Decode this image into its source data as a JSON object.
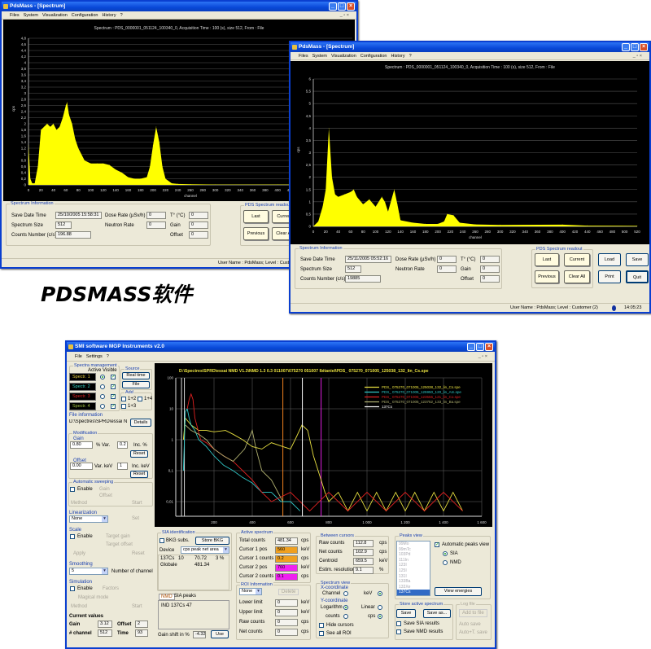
{
  "caption": "PDSMASS软件",
  "pdsmass_menu": [
    "Files",
    "System",
    "Visualization",
    "Configuration",
    "History",
    "?"
  ],
  "window1": {
    "title": "PdsMass - [Spectrum]",
    "chart_title": "Spectrum : PDS_0000001_051124_100340_0, Acquisition Time : 100 (s), size 512, From : File",
    "info_group": "Spectrum Information",
    "labels": {
      "save_date": "Save Date Time",
      "size": "Spectrum Size",
      "counts": "Counts Number (c/s)",
      "dose": "Dose Rate (µSv/h)",
      "neutron": "Neutron Rate",
      "temp": "T° (°C)",
      "gain": "Gain",
      "offset": "Offset"
    },
    "values": {
      "save_date": "25/10/2005 15:58:31",
      "size": "512",
      "counts": "196.88",
      "dose": "0",
      "neutron": "0",
      "temp": "0",
      "gain": "0",
      "offset": "0"
    },
    "readout_group": "PDS Spectrum readout",
    "buttons": {
      "last": "Last",
      "current": "Current",
      "previous": "Previous",
      "clear_all": "Clear All"
    },
    "status": "User Name : PdsMass;  Level : Customer (2)"
  },
  "window2": {
    "title": "PdsMass - [Spectrum]",
    "chart_title": "Spectrum : PDS_0000001_051124_100340_0, Acquisition Time : 100 (s), size 512, From : File",
    "info_group": "Spectrum Information",
    "labels": {
      "save_date": "Save Date Time",
      "size": "Spectrum Size",
      "counts": "Counts Number (c/s)",
      "dose": "Dose Rate (µSv/h)",
      "neutron": "Neutron Rate",
      "temp": "T° (°C)",
      "gain": "Gain",
      "offset": "Offset"
    },
    "values": {
      "save_date": "25/11/2005 05:52:16",
      "size": "512",
      "counts": "19885",
      "dose": "0",
      "neutron": "0",
      "temp": "0",
      "gain": "0",
      "offset": "0"
    },
    "readout_group": "PDS Spectrum readout",
    "buttons": {
      "last": "Last",
      "current": "Current",
      "previous": "Previous",
      "clear_all": "Clear All",
      "load": "Load",
      "save": "Save",
      "print": "Print",
      "quit": "Quit"
    },
    "status": "User Name : PdsMass;  Level : Customer (2)",
    "time": "14:05:23"
  },
  "window3": {
    "title": "SMI software MGP Instruments v2.0",
    "menu": [
      "File",
      "Settings",
      "?"
    ],
    "spectra": {
      "group": "Spectra management",
      "header": "Active Visible",
      "items": [
        {
          "label": "Spectr. 1",
          "color": "#e8d040",
          "active": true,
          "visible": true
        },
        {
          "label": "Spectr. 2",
          "color": "#30d0c0",
          "active": false,
          "visible": true
        },
        {
          "label": "Spectr. 3",
          "color": "#e02020",
          "active": false,
          "visible": true
        },
        {
          "label": "Spectr. 4",
          "color": "#a0c040",
          "active": false,
          "visible": true
        }
      ]
    },
    "source": {
      "group": "Source",
      "real_time": "Real time",
      "file": "File"
    },
    "add": {
      "group": "Add",
      "c12": "1+2",
      "c14": "1+4",
      "c13": "1+3"
    },
    "file_info": {
      "group": "File information",
      "path": "D:\\Spectres\\SPRD\\essai N",
      "details": "Details"
    },
    "modification": {
      "group": "Modification",
      "gain_label": "Gain",
      "gain": "0.80",
      "gain_var": "% Var.",
      "gain_inc": "0.2",
      "gain_inc_unit": "Inc. %",
      "reset": "Reset",
      "offset_label": "Offset",
      "offset": "0.00",
      "offset_var": "Var. keV",
      "offset_inc": "1",
      "offset_inc_unit": "Inc. keV"
    },
    "sweeping": {
      "group": "Automatic sweeping",
      "enable": "Enable",
      "gain": "Gain",
      "offset": "Offset",
      "method": "Method",
      "start": "Start"
    },
    "linearization": {
      "group": "Linearization",
      "value": "None",
      "set": "Set"
    },
    "scale": {
      "group": "Scale",
      "enable": "Enable",
      "target_gain": "Target gain",
      "target_offset": "Target offset",
      "apply": "Apply",
      "reset": "Reset"
    },
    "smoothing": {
      "group": "Smoothing",
      "value": "5",
      "label": "Number of channel"
    },
    "simulation": {
      "group": "Simulation",
      "enable": "Enable",
      "factors": "Factors",
      "magical": "Magical mode",
      "method": "Method",
      "start": "Start"
    },
    "current": {
      "title": "Current values",
      "gain_label": "Gain",
      "gain": "3.12",
      "offset_label": "Offset",
      "offset": "2",
      "channel_label": "# channel",
      "channel": "512",
      "time_label": "Time",
      "time": "93"
    },
    "chart_title": "D:\\Spectres\\SPRD\\essai NMD V1.3\\NMD 1.3 0.3 011007\\075270 051007 lbitaniel\\PDS_ 075270_071005_125038_132_lin_Cs.spe",
    "sia": {
      "group": "SIA identification",
      "bkg": "BKG subs.",
      "store_bkg": "Store BKG",
      "device_label": "Device",
      "device": "cps peak net area",
      "rows": [
        [
          "137Cs",
          "10",
          "70.72",
          "3 %"
        ],
        [
          "Globale",
          "",
          "481.34",
          ""
        ]
      ]
    },
    "nmd": {
      "tabs": [
        "NMD",
        "SIA peaks"
      ],
      "text": "IND 137Cs 47",
      "gain_shift_label": "Gain shift in %",
      "gain_shift": "-4.32",
      "use": "Use"
    },
    "active": {
      "group": "Active spectrum",
      "rows": [
        {
          "label": "Total counts",
          "value": "481.34",
          "unit": "cps",
          "color": "#f4f3ee"
        },
        {
          "label": "Cursor 1 pos",
          "value": "560",
          "unit": "keV",
          "color": "#f0a020"
        },
        {
          "label": "Cursor 1 counts",
          "value": "0.2",
          "unit": "cps",
          "color": "#f0a020"
        },
        {
          "label": "Cursor 2 pos",
          "value": "760",
          "unit": "keV",
          "color": "#f020f0"
        },
        {
          "label": "Cursor 2 counts",
          "value": "0.1",
          "unit": "cps",
          "color": "#f020f0"
        }
      ]
    },
    "roi": {
      "group": "ROI Information",
      "select": "None",
      "delete": "Delete",
      "rows": [
        {
          "label": "Lower limit",
          "value": "0",
          "unit": "keV"
        },
        {
          "label": "Upper limit",
          "value": "0",
          "unit": "keV"
        },
        {
          "label": "Raw counts",
          "value": "0",
          "unit": "cps"
        },
        {
          "label": "Net counts",
          "value": "0",
          "unit": "cps"
        }
      ]
    },
    "between": {
      "group": "Between cursors",
      "rows": [
        {
          "label": "Raw counts",
          "value": "112.8",
          "unit": "cps"
        },
        {
          "label": "Net counts",
          "value": "102.9",
          "unit": "cps"
        },
        {
          "label": "Centroid",
          "value": "659.5",
          "unit": "keV"
        },
        {
          "label": "Estim. resolution",
          "value": "9.1",
          "unit": "%"
        }
      ]
    },
    "view": {
      "group": "Spectrum view",
      "x_title": "X-coordinate",
      "channel": "Channel",
      "kev": "keV",
      "y_title": "Y-coordinate",
      "log": "Logarithm",
      "linear": "Linear",
      "counts": "counts",
      "cps": "cps",
      "hide": "Hide cursors",
      "roi": "See all ROI"
    },
    "peaks": {
      "group": "Peaks view",
      "items": [
        "99Mo",
        "99mTc",
        "103Pd",
        "111In",
        "123I",
        "125I",
        "131I",
        "133Ba",
        "133Xe",
        "137Cs"
      ],
      "selected": "137Cs",
      "auto": "Automatic peaks view",
      "sia": "SIA",
      "nmd": "NMD",
      "view_energies": "View energies"
    },
    "store": {
      "group": "Store active spectrum",
      "save": "Save",
      "save_as": "Save as...",
      "save_sia": "Save SIA results",
      "save_nmd": "Save NMD results"
    },
    "log": {
      "group": "Log file",
      "add": "Add to file",
      "auto": "Auto save",
      "auto_t": "Auto+T. save"
    }
  },
  "chart_data": [
    {
      "type": "area",
      "title": "Spectrum : PDS_0000001_051124_100340_0, Acquisition Time : 100 (s), size 512, From : File",
      "xlabel": "channel",
      "ylabel": "cps",
      "xlim": [
        0,
        520
      ],
      "ylim": [
        0,
        4.8
      ],
      "yticks_step": 0.2,
      "xticks_step": 20,
      "grid": true,
      "color": "#ffff00",
      "x": [
        0,
        3,
        6,
        10,
        15,
        20,
        25,
        30,
        35,
        40,
        45,
        50,
        55,
        60,
        62,
        65,
        70,
        75,
        80,
        90,
        100,
        110,
        120,
        130,
        140,
        150,
        160,
        170,
        180,
        190,
        195,
        200,
        205,
        210,
        215,
        220,
        230,
        240,
        260,
        300,
        400,
        520
      ],
      "y": [
        1.3,
        0.2,
        0.05,
        0.05,
        0.6,
        1.8,
        1.9,
        2.0,
        1.9,
        2.0,
        1.8,
        1.9,
        2.2,
        2.6,
        2.7,
        2.3,
        2.0,
        1.5,
        1.2,
        0.8,
        0.7,
        0.7,
        0.7,
        0.65,
        0.5,
        0.4,
        0.25,
        0.2,
        0.2,
        0.25,
        0.6,
        1.3,
        1.9,
        1.4,
        0.6,
        0.2,
        0.05,
        0.03,
        0.02,
        0.01,
        0.01,
        0
      ]
    },
    {
      "type": "area",
      "title": "Spectrum : PDS_0000001_051124_100340_0, Acquisition Time : 100 (s), size 512, From : File",
      "xlabel": "channel",
      "ylabel": "cps",
      "xlim": [
        0,
        520
      ],
      "ylim": [
        0,
        6
      ],
      "yticks_step": 0.5,
      "xticks_step": 20,
      "grid": true,
      "color": "#ffff00",
      "x": [
        0,
        8,
        15,
        20,
        25,
        30,
        35,
        40,
        50,
        60,
        65,
        70,
        80,
        90,
        100,
        110,
        115,
        120,
        130,
        135,
        140,
        160,
        180,
        200,
        210,
        215,
        225,
        235,
        260,
        300,
        400,
        440,
        520
      ],
      "y": [
        0,
        0.2,
        0.8,
        1.5,
        4.0,
        2.0,
        1.3,
        1.2,
        1.3,
        1.4,
        1.5,
        1.2,
        0.9,
        1.1,
        0.8,
        1.2,
        1.0,
        0.6,
        1.5,
        0.9,
        0.25,
        0.15,
        0.1,
        0.1,
        0.2,
        0.5,
        0.45,
        0.15,
        0.08,
        0.06,
        0.07,
        0.03,
        0.02
      ]
    },
    {
      "type": "line",
      "title": "D:\\Spectres\\SPRD\\essai NMD V1.3\\NMD 1.3 0.3 011007\\075270 051007 lbitaniel\\PDS_ 075270_071005_125038_132_lin_Cs.spe",
      "xlim": [
        0,
        1600
      ],
      "ylim": [
        0.004,
        100
      ],
      "yscale": "log",
      "yticks": [
        100,
        10,
        1,
        0.1,
        0.01
      ],
      "xticks": [
        200,
        400,
        600,
        800,
        1000,
        1200,
        1400,
        1600
      ],
      "xtick_labels": [
        "200",
        "400",
        "600",
        "800",
        "1 000",
        "1 200",
        "1 400",
        "1 600"
      ],
      "legend": "top-right",
      "series": [
        {
          "name": "PDS_ 075270_071005_125038_132_lin_Cs.spe",
          "color": "#e8e040",
          "x": [
            40,
            50,
            80,
            120,
            160,
            200,
            260,
            300,
            350,
            400,
            450,
            500,
            560,
            600,
            630,
            660,
            690,
            720,
            760,
            780,
            800,
            850,
            900,
            950,
            1000,
            1050,
            1100,
            1150,
            1200,
            1250,
            1300,
            1350,
            1400,
            1450,
            1500
          ],
          "y": [
            1,
            5,
            3,
            2,
            2,
            1.8,
            2,
            1.5,
            1,
            0.6,
            0.5,
            0.8,
            0.6,
            0.5,
            1.2,
            3,
            2,
            0.3,
            0.05,
            0.02,
            0.01,
            0.02,
            0.005,
            0.02,
            0.005,
            0.02,
            0.005,
            0.02,
            0.005,
            0.02,
            0.005,
            0.02,
            0.005,
            0.02,
            0.005
          ]
        },
        {
          "name": "PDS_ 075270_071005_125950_120_lin_Am.spe",
          "color": "#30c8c8",
          "x": [
            40,
            50,
            60,
            70,
            80,
            100,
            120,
            160,
            200,
            250,
            300,
            350,
            400,
            450,
            500,
            550,
            600,
            650
          ],
          "y": [
            0.1,
            8,
            10,
            5,
            3,
            2,
            1,
            0.6,
            0.3,
            0.15,
            0.1,
            0.06,
            0.04,
            0.02,
            0.02,
            0.01,
            0.01,
            0.005
          ]
        },
        {
          "name": "PDS_ 075270_071005_123556_121_lin_Co.spe",
          "color": "#e02020",
          "x": [
            60,
            70,
            80,
            90,
            100,
            130,
            160,
            200,
            250,
            300,
            350,
            400,
            450,
            500,
            600,
            700,
            800,
            900,
            1000,
            1100,
            1200,
            1300,
            1400,
            1500
          ],
          "y": [
            10,
            20,
            30,
            20,
            5,
            1,
            0.8,
            0.5,
            0.3,
            0.2,
            0.1,
            0.05,
            0.02,
            0.01,
            0.02,
            0.005,
            0.02,
            0.005,
            0.02,
            0.005,
            0.02,
            0.005,
            0.02,
            0.005
          ]
        },
        {
          "name": "PDS_ 075270_071005_123752_133_lin_Ba.spe",
          "color": "#b0b070",
          "x": [
            50,
            80,
            120,
            160,
            200,
            250,
            300,
            360,
            400,
            420,
            450,
            500,
            560
          ],
          "y": [
            3,
            2,
            1.5,
            1,
            0.5,
            0.3,
            0.2,
            0.5,
            2,
            0.5,
            0.1,
            0.05,
            0.01
          ]
        },
        {
          "name": "137Cs",
          "color": "#ffffff",
          "x": [
            662
          ],
          "y": [
            100
          ]
        }
      ],
      "cursors": [
        {
          "x": 560,
          "color": "#f08020"
        },
        {
          "x": 760,
          "color": "#e020e0"
        }
      ]
    }
  ]
}
